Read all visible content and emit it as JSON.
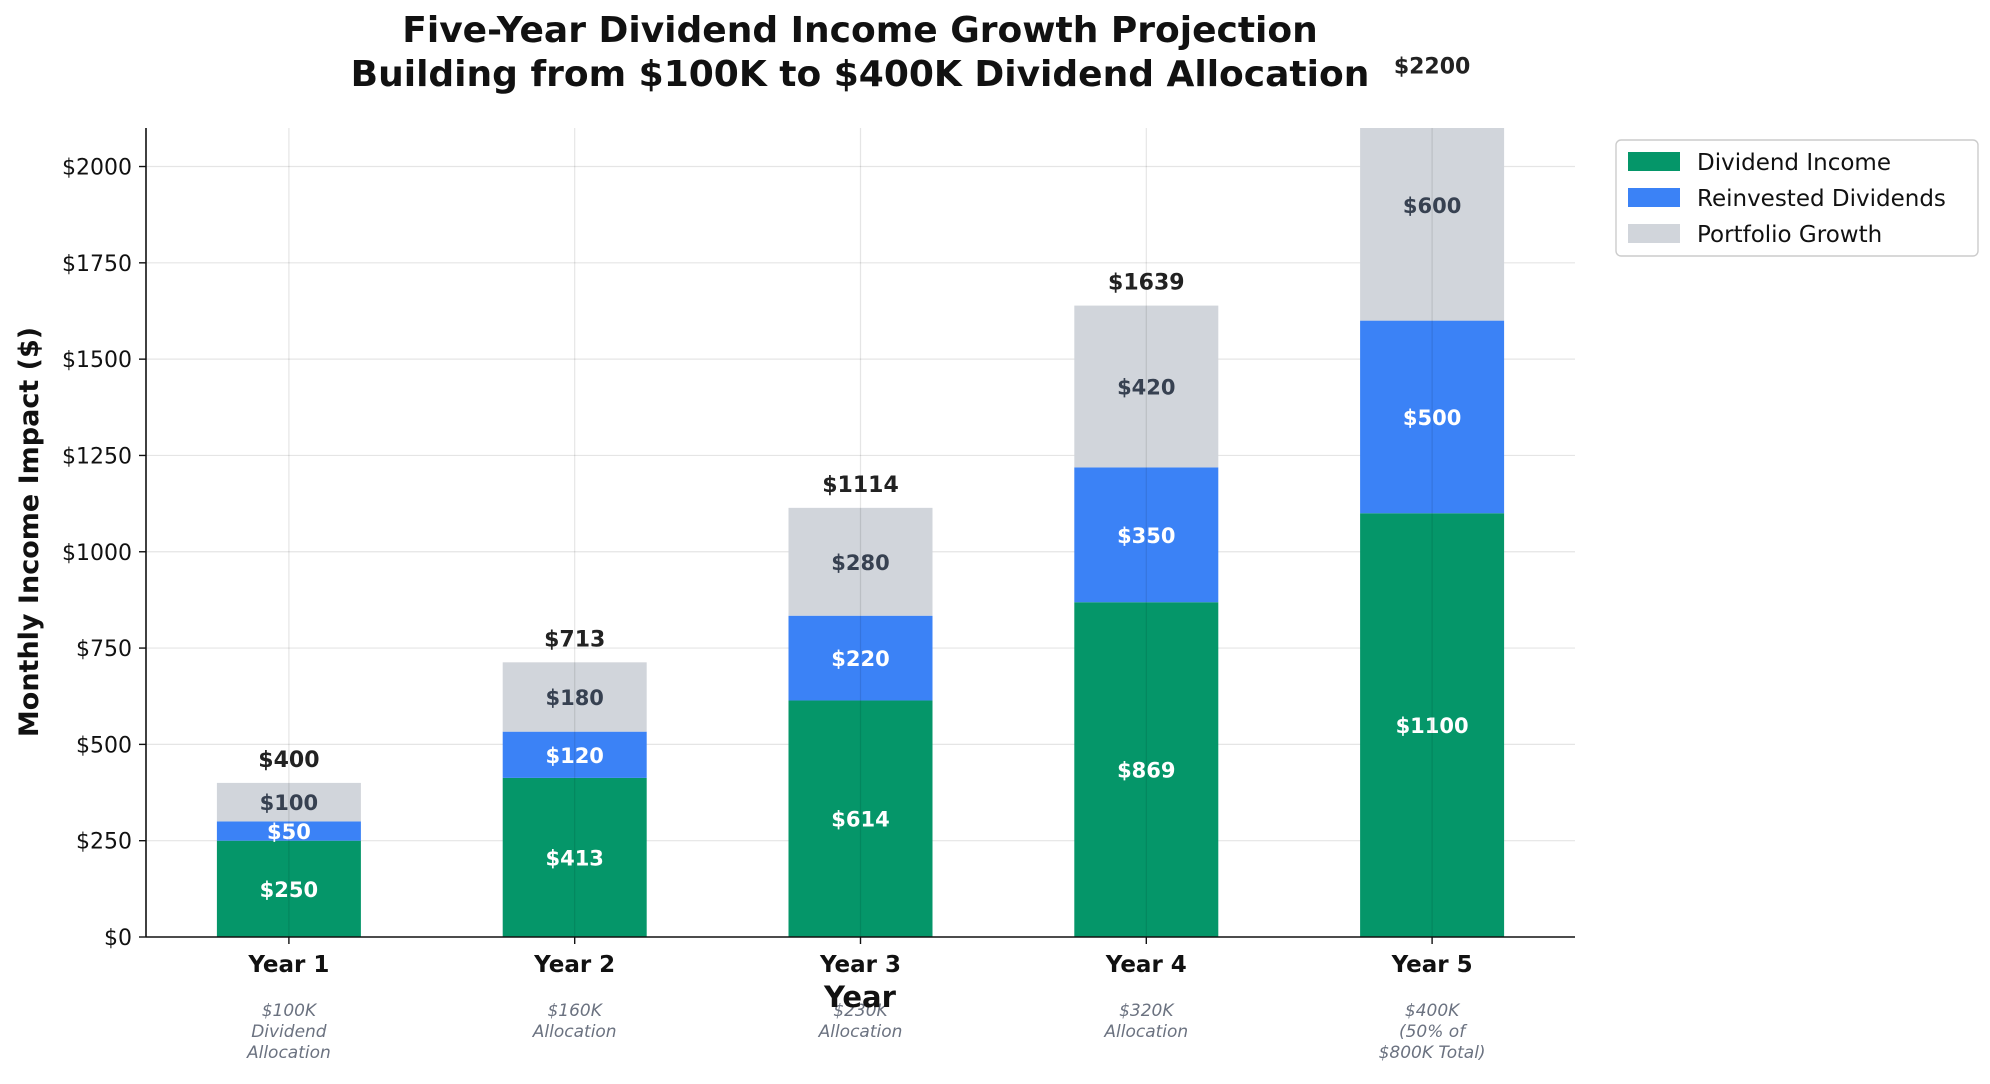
{
  "chart_data": {
    "type": "bar",
    "stacked": true,
    "title_line1": "Five-Year Dividend Income Growth Projection",
    "title_line2": "Building from $100K to $400K Dividend Allocation",
    "xlabel": "Year",
    "ylabel": "Monthly Income Impact ($)",
    "ylim": [
      0,
      2100
    ],
    "yticks": [
      0,
      250,
      500,
      750,
      1000,
      1250,
      1500,
      1750,
      2000
    ],
    "ytick_labels": [
      "$0",
      "$250",
      "$500",
      "$750",
      "$1000",
      "$1250",
      "$1500",
      "$1750",
      "$2000"
    ],
    "grid": true,
    "legend_position": "outside-top-right",
    "categories": [
      "Year 1",
      "Year 2",
      "Year 3",
      "Year 4",
      "Year 5"
    ],
    "subcategory_notes": [
      [
        "$100K",
        "Dividend",
        "Allocation"
      ],
      [
        "$160K",
        "Allocation"
      ],
      [
        "$230K",
        "Allocation"
      ],
      [
        "$320K",
        "Allocation"
      ],
      [
        "$400K",
        "(50% of",
        "$800K Total)"
      ]
    ],
    "series": [
      {
        "name": "Dividend Income",
        "color": "#059669",
        "label_color": "#ffffff",
        "values": [
          250,
          413,
          614,
          869,
          1100
        ],
        "value_labels": [
          "$250",
          "$413",
          "$614",
          "$869",
          "$1100"
        ]
      },
      {
        "name": "Reinvested Dividends",
        "color": "#3b82f6",
        "label_color": "#ffffff",
        "values": [
          50,
          120,
          220,
          350,
          500
        ],
        "value_labels": [
          "$50",
          "$120",
          "$220",
          "$350",
          "$500"
        ]
      },
      {
        "name": "Portfolio Growth",
        "color": "#d1d5db",
        "label_color": "#374151",
        "values": [
          100,
          180,
          280,
          420,
          600
        ],
        "value_labels": [
          "$100",
          "$180",
          "$280",
          "$420",
          "$600"
        ]
      }
    ],
    "totals": [
      400,
      713,
      1114,
      1639,
      2200
    ],
    "total_labels": [
      "$400",
      "$713",
      "$1114",
      "$1639",
      "$2200"
    ]
  }
}
